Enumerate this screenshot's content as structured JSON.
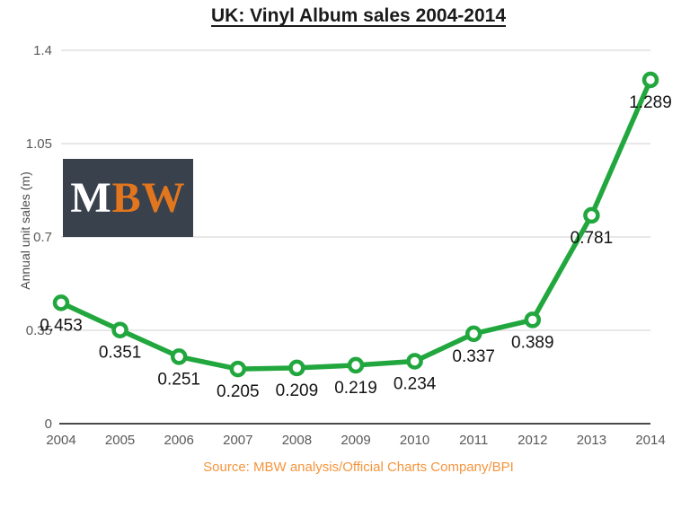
{
  "title": "UK: Vinyl Album sales 2004-2014",
  "source": "Source: MBW analysis/Official Charts Company/BPI",
  "logo": {
    "part1": "M",
    "part2": "BW",
    "background": "#39414d",
    "part1_color": "#ffffff",
    "part2_color": "#e2761f"
  },
  "colors": {
    "line_green": "#21a73e",
    "source_orange": "#f5953d",
    "axis_text_gray": "#595959",
    "gridline_gray": "#d2d2d2",
    "axis_line_gray": "#4a4a4a"
  },
  "chart_data": {
    "type": "line",
    "title": "UK: Vinyl Album sales 2004-2014",
    "xlabel": "",
    "ylabel": "Annual unit sales (m)",
    "categories": [
      "2004",
      "2005",
      "2006",
      "2007",
      "2008",
      "2009",
      "2010",
      "2011",
      "2012",
      "2013",
      "2014"
    ],
    "values": [
      0.453,
      0.351,
      0.251,
      0.205,
      0.209,
      0.219,
      0.234,
      0.337,
      0.389,
      0.781,
      1.289
    ],
    "labels": [
      "0.453",
      "0.351",
      "0.251",
      "0.205",
      "0.209",
      "0.219",
      "0.234",
      "0.337",
      "0.389",
      "0.781",
      "1.289"
    ],
    "ylim": [
      0,
      1.4
    ],
    "yticks": [
      0,
      0.35,
      0.7,
      1.05,
      1.4
    ],
    "grid": true,
    "legend": "none",
    "line_color": "#21a73e",
    "marker": "circle-open"
  }
}
